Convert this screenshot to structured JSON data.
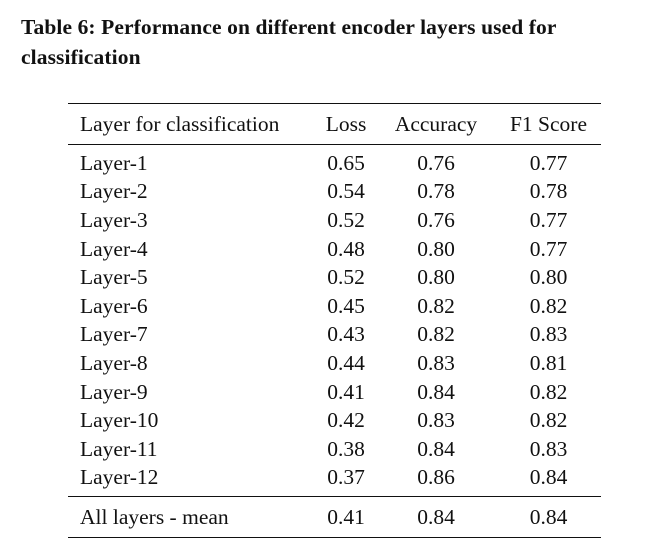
{
  "caption": {
    "line1": "Table 6: Performance on different encoder layers used for",
    "line2": "classification"
  },
  "table": {
    "headers": [
      "Layer for classification",
      "Loss",
      "Accuracy",
      "F1 Score"
    ],
    "rows": [
      [
        "Layer-1",
        "0.65",
        "0.76",
        "0.77"
      ],
      [
        "Layer-2",
        "0.54",
        "0.78",
        "0.78"
      ],
      [
        "Layer-3",
        "0.52",
        "0.76",
        "0.77"
      ],
      [
        "Layer-4",
        "0.48",
        "0.80",
        "0.77"
      ],
      [
        "Layer-5",
        "0.52",
        "0.80",
        "0.80"
      ],
      [
        "Layer-6",
        "0.45",
        "0.82",
        "0.82"
      ],
      [
        "Layer-7",
        "0.43",
        "0.82",
        "0.83"
      ],
      [
        "Layer-8",
        "0.44",
        "0.83",
        "0.81"
      ],
      [
        "Layer-9",
        "0.41",
        "0.84",
        "0.82"
      ],
      [
        "Layer-10",
        "0.42",
        "0.83",
        "0.82"
      ],
      [
        "Layer-11",
        "0.38",
        "0.84",
        "0.83"
      ],
      [
        "Layer-12",
        "0.37",
        "0.86",
        "0.84"
      ]
    ],
    "footer": [
      "All layers - mean",
      "0.41",
      "0.84",
      "0.84"
    ]
  }
}
